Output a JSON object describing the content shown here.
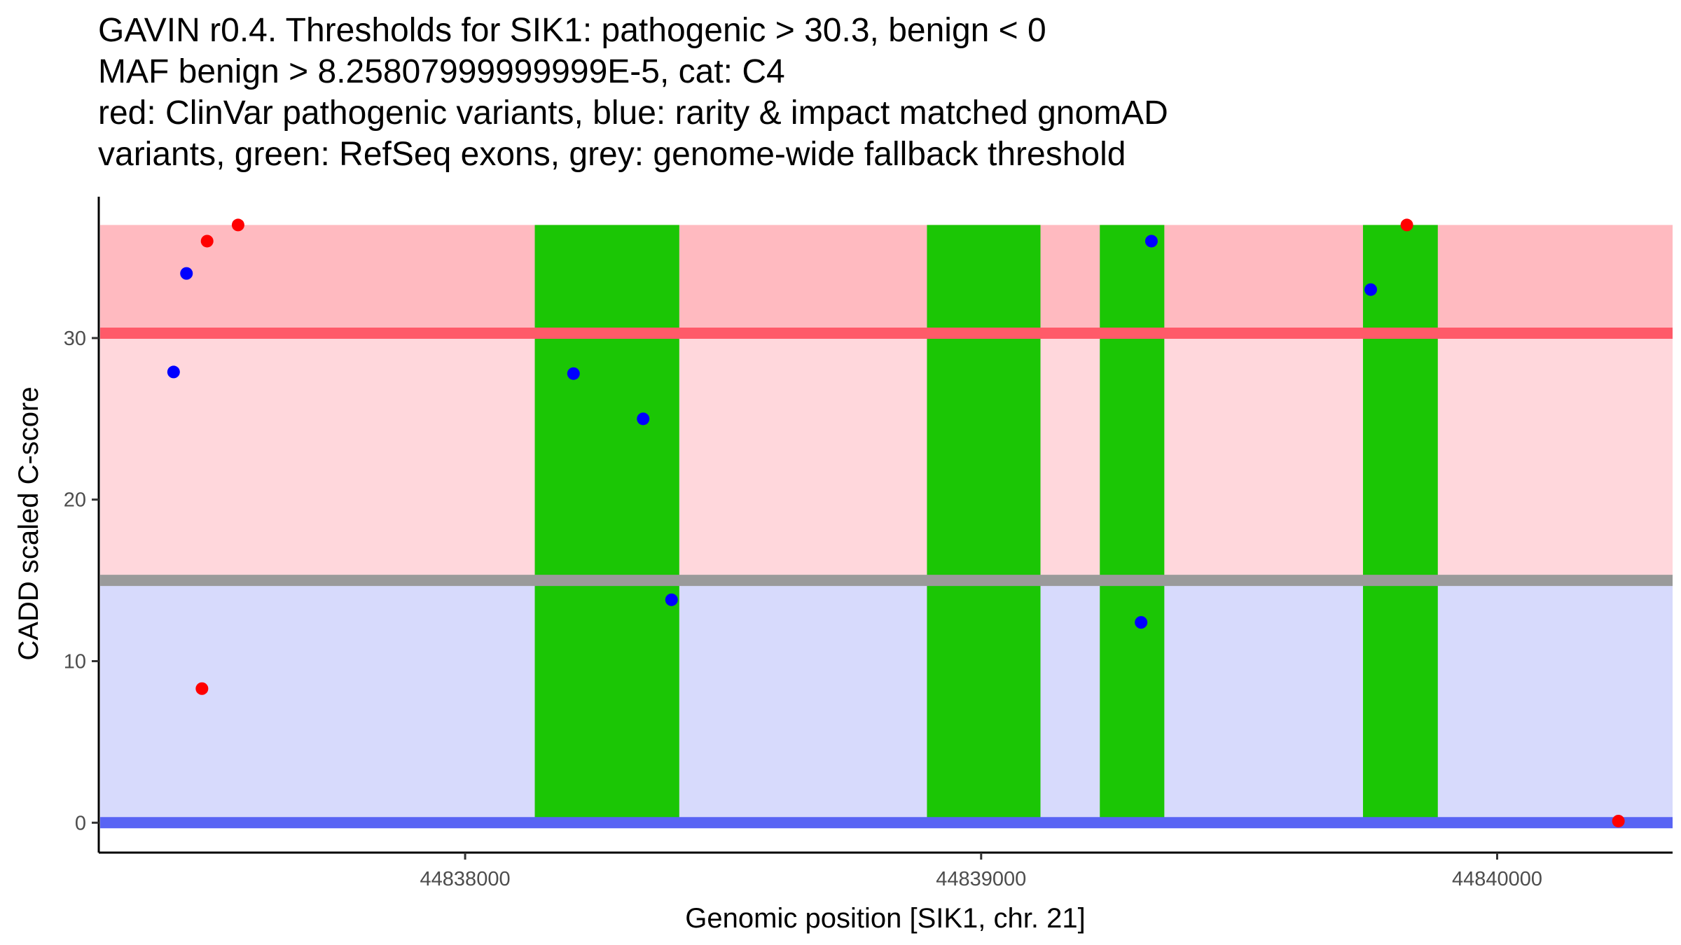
{
  "title_lines": [
    "GAVIN r0.4. Thresholds for SIK1: pathogenic > 30.3, benign < 0",
    "MAF benign > 8.25807999999999E-5, cat: C4",
    "red: ClinVar pathogenic variants, blue: rarity & impact matched gnomAD",
    "variants, green: RefSeq exons, grey: genome-wide fallback threshold"
  ],
  "chart_data": {
    "type": "scatter",
    "xlabel": "Genomic position [SIK1, chr. 21]",
    "ylabel": "CADD scaled C-score",
    "xlim": [
      44837290,
      44840340
    ],
    "ylim": [
      -1.85,
      38.75
    ],
    "x_ticks": [
      44838000,
      44839000,
      44840000
    ],
    "y_ticks": [
      0,
      10,
      20,
      30
    ],
    "regions": {
      "pathogenic_band": {
        "y": [
          30.3,
          37
        ],
        "color": "#ffbac0"
      },
      "intermediate_band": {
        "y": [
          15.3,
          30.3
        ],
        "color": "#ffd7dc"
      },
      "benign_band": {
        "y": [
          0,
          15.3
        ],
        "color": "#d7dafc"
      }
    },
    "threshold_lines": [
      {
        "name": "pathogenic threshold",
        "y": 30.3,
        "color": "#ff5a69"
      },
      {
        "name": "genome-wide fallback threshold",
        "y": 15.0,
        "color": "#9a9a9a"
      },
      {
        "name": "benign threshold",
        "y": 0,
        "color": "#5864f4"
      }
    ],
    "exons": [
      {
        "start": 44838135,
        "end": 44838415
      },
      {
        "start": 44838895,
        "end": 44839115
      },
      {
        "start": 44839230,
        "end": 44839355
      },
      {
        "start": 44839740,
        "end": 44839885
      }
    ],
    "exon_color": "#1bc605",
    "series": [
      {
        "color": "#ff0000",
        "points": [
          {
            "x": 44837490,
            "y": 8.3
          },
          {
            "x": 44837500,
            "y": 36
          },
          {
            "x": 44837560,
            "y": 37
          },
          {
            "x": 44839825,
            "y": 37
          },
          {
            "x": 44840235,
            "y": 0.1
          }
        ]
      },
      {
        "color": "#0000ff",
        "points": [
          {
            "x": 44837435,
            "y": 27.9
          },
          {
            "x": 44837460,
            "y": 34
          },
          {
            "x": 44838210,
            "y": 27.8
          },
          {
            "x": 44838345,
            "y": 25
          },
          {
            "x": 44838400,
            "y": 13.8
          },
          {
            "x": 44839310,
            "y": 12.4
          },
          {
            "x": 44839330,
            "y": 36
          },
          {
            "x": 44839755,
            "y": 33
          }
        ]
      }
    ]
  }
}
